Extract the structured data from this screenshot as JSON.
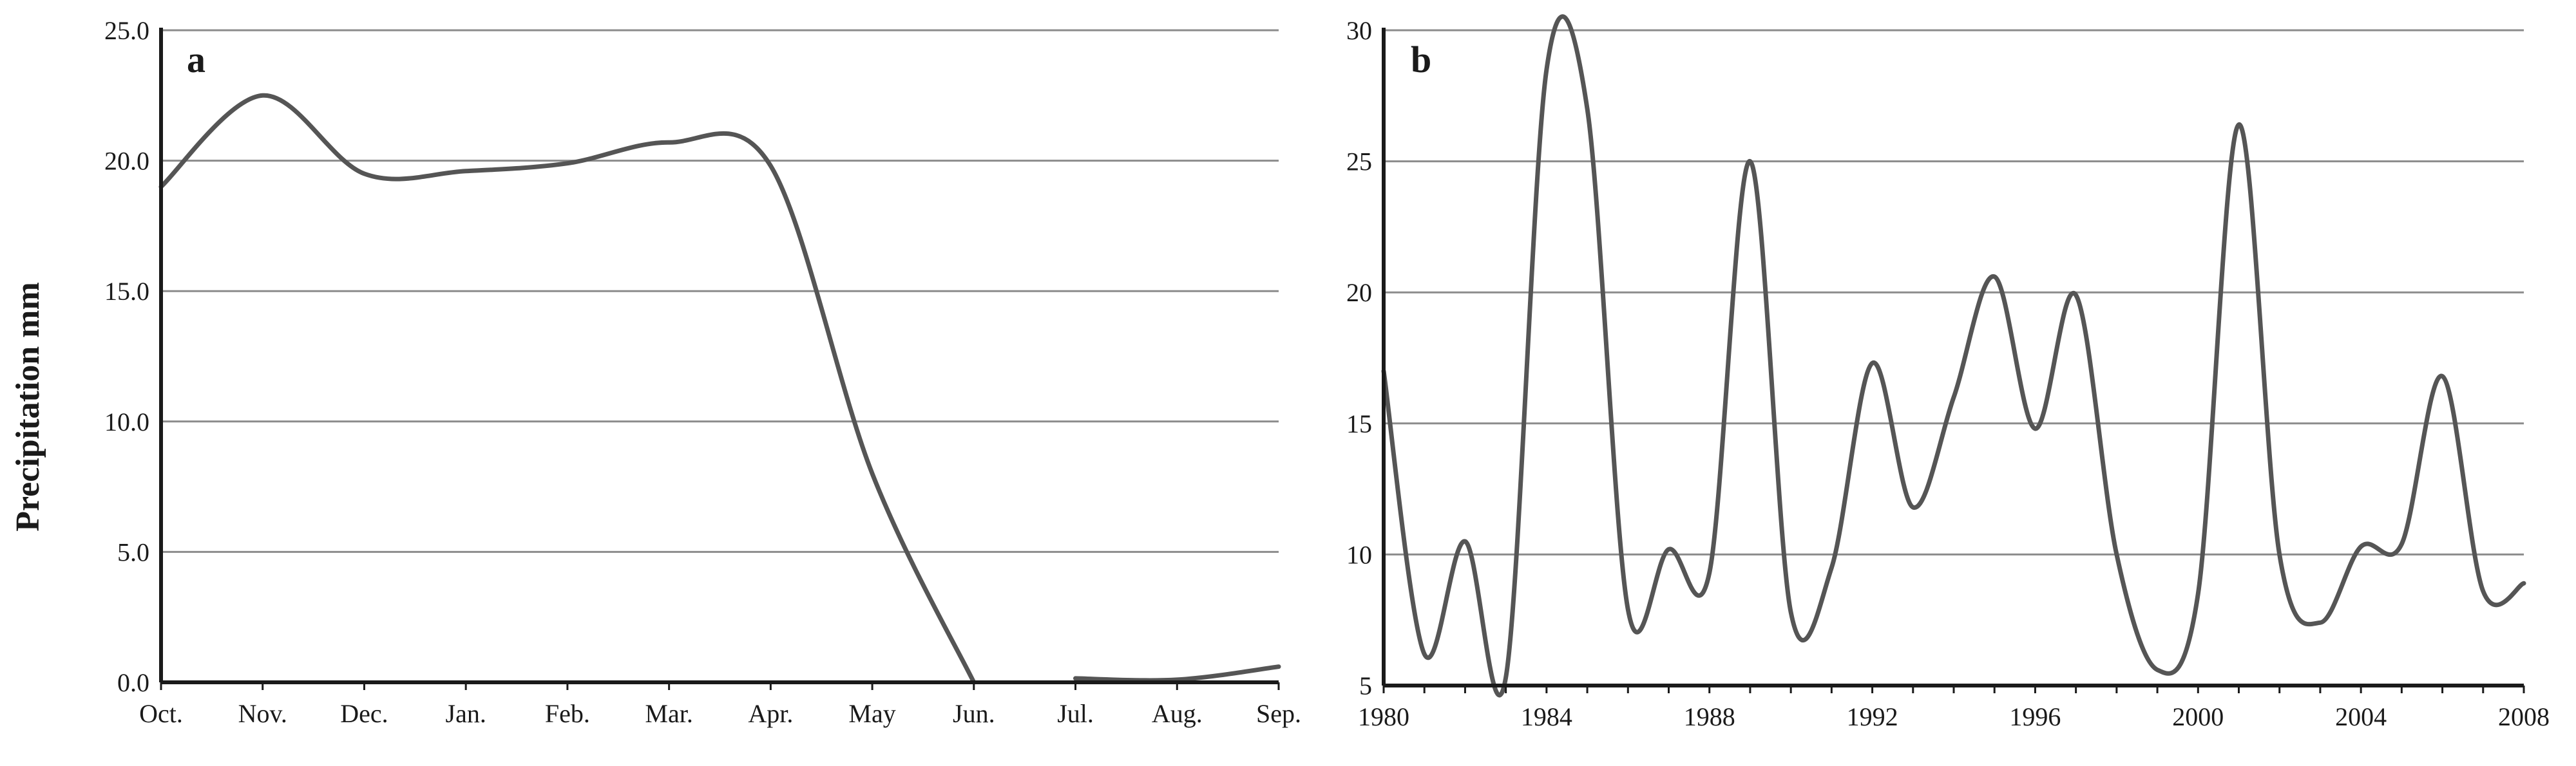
{
  "chart_data": [
    {
      "panel_label": "a",
      "type": "line",
      "ylabel": "Precipitation mm",
      "xlabel": "",
      "title": "",
      "categories": [
        "Oct.",
        "Nov.",
        "Dec.",
        "Jan.",
        "Feb.",
        "Mar.",
        "Apr.",
        "May",
        "Jun.",
        "Jul.",
        "Aug.",
        "Sep."
      ],
      "series": [
        {
          "values": [
            19.0,
            22.5,
            19.5,
            19.6,
            19.9,
            20.7,
            19.8,
            8.0,
            0.0,
            null,
            null,
            null
          ]
        },
        {
          "values": [
            null,
            null,
            null,
            null,
            null,
            null,
            null,
            null,
            null,
            0.15,
            0.1,
            0.6
          ]
        }
      ],
      "ylim": [
        0,
        25
      ],
      "yticks": [
        "0.0",
        "5.0",
        "10.0",
        "15.0",
        "20.0",
        "25.0"
      ],
      "grid": "horizontal",
      "line_color": "#555555"
    },
    {
      "panel_label": "b",
      "type": "line",
      "ylabel": "",
      "xlabel": "",
      "title": "",
      "x": [
        1980,
        1981,
        1982,
        1983,
        1984,
        1985,
        1986,
        1987,
        1988,
        1989,
        1990,
        1991,
        1992,
        1993,
        1994,
        1995,
        1996,
        1997,
        1998,
        1999,
        2000,
        2001,
        2002,
        2003,
        2004,
        2005,
        2006,
        2007,
        2008
      ],
      "series": [
        {
          "values": [
            17.0,
            6.2,
            10.5,
            5.3,
            28.5,
            27.0,
            7.9,
            10.2,
            9.3,
            25.0,
            7.8,
            9.5,
            17.3,
            11.8,
            16.0,
            20.6,
            14.8,
            19.9,
            10.0,
            5.6,
            8.5,
            26.4,
            10.0,
            7.4,
            10.3,
            10.4,
            16.8,
            8.6,
            8.9
          ]
        }
      ],
      "xlim": [
        1980,
        2008
      ],
      "xticks": [
        "1980",
        "1984",
        "1988",
        "1992",
        "1996",
        "2000",
        "2004",
        "2008"
      ],
      "ylim": [
        5,
        30
      ],
      "yticks": [
        "5",
        "10",
        "15",
        "20",
        "25",
        "30"
      ],
      "grid": "horizontal",
      "line_color": "#555555"
    }
  ]
}
